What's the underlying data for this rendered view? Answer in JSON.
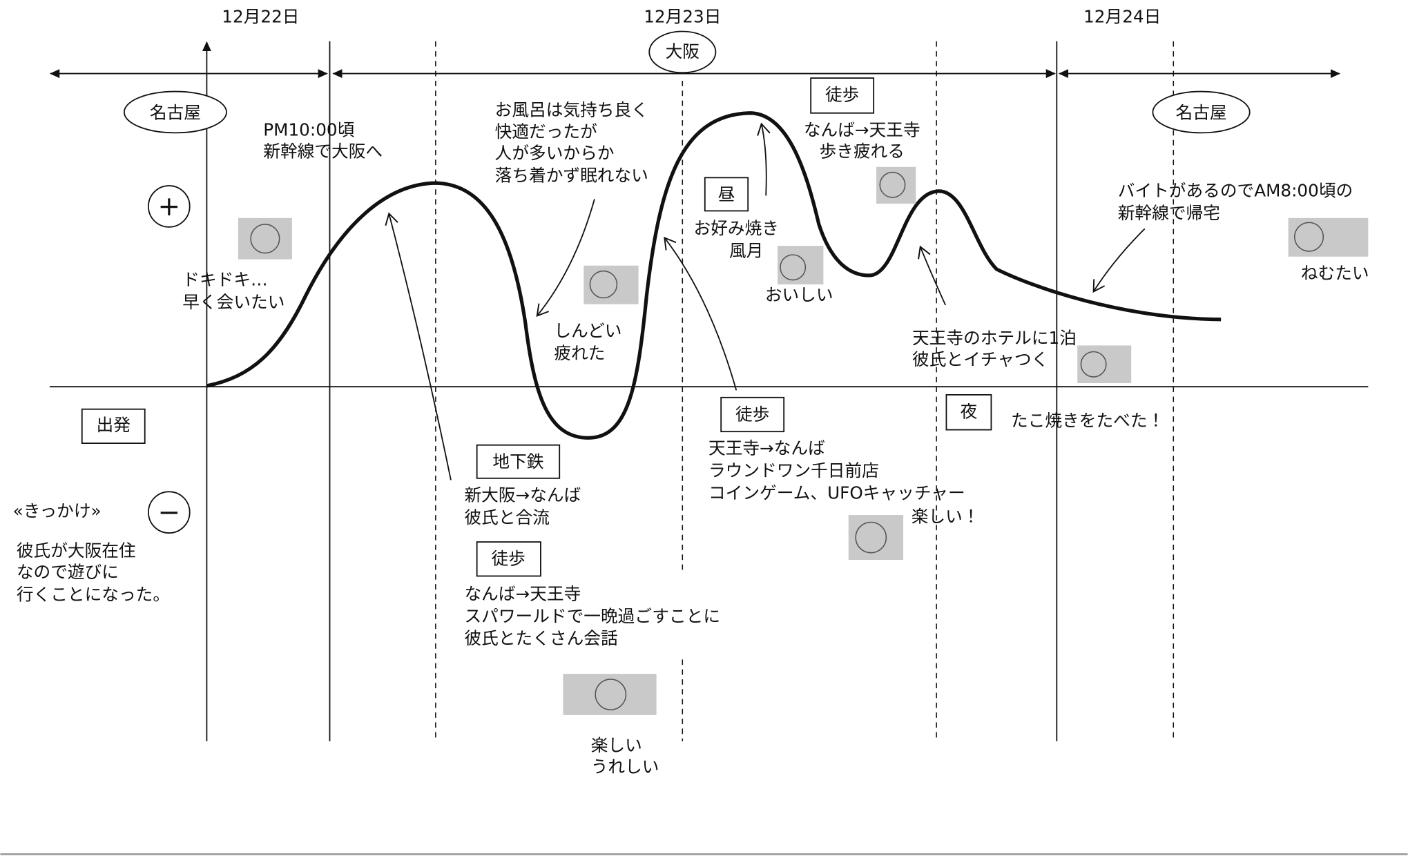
{
  "dates": [
    "12月22日",
    "12月23日",
    "12月24日"
  ],
  "places": [
    "名古屋",
    "大阪",
    "名古屋"
  ],
  "emotion_axis": {
    "positive": "+",
    "negative": "−"
  },
  "start": "出発",
  "trigger": {
    "heading": "«きっかけ»",
    "lines": [
      "彼氏が大阪在住",
      "なので遊びに",
      "行くことになった。"
    ]
  },
  "notes": [
    {
      "lines": [
        "ドキドキ…",
        "早く会いたい"
      ]
    },
    {
      "lines": [
        "PM10:00頃",
        "新幹線で大阪へ"
      ]
    },
    {
      "lines": [
        "お風呂は気持ち良く",
        "快適だったが",
        "人が多いからか",
        "落ち着かず眠れない"
      ]
    },
    {
      "lines": [
        "しんどい",
        "疲れた"
      ]
    },
    {
      "tag": "地下鉄",
      "lines": [
        "新大阪→なんば",
        "彼氏と合流"
      ]
    },
    {
      "tag": "徒歩",
      "lines": [
        "なんば→天王寺",
        "スパワールドで一晩過ごすことに",
        "彼氏とたくさん会話"
      ]
    },
    {
      "lines": [
        "楽しい",
        "うれしい"
      ]
    },
    {
      "tag": "昼",
      "lines": [
        "お好み焼き",
        "風月"
      ]
    },
    {
      "lines": [
        "おいしい"
      ]
    },
    {
      "tag": "徒歩",
      "lines": [
        "天王寺→なんば",
        "ラウンドワン千日前店",
        "コインゲーム、UFOキャッチャー",
        "楽しい！"
      ]
    },
    {
      "tag": "徒歩",
      "lines": [
        "なんば→天王寺",
        "歩き疲れる"
      ]
    },
    {
      "tag": "夜",
      "lines": [
        "たこ焼きをたべた！"
      ]
    },
    {
      "lines": [
        "天王寺のホテルに1泊",
        "彼氏とイチャつく"
      ]
    },
    {
      "lines": [
        "バイトがあるのでAM8:00頃の",
        "新幹線で帰宅"
      ]
    },
    {
      "lines": [
        "ねむたい"
      ]
    }
  ]
}
